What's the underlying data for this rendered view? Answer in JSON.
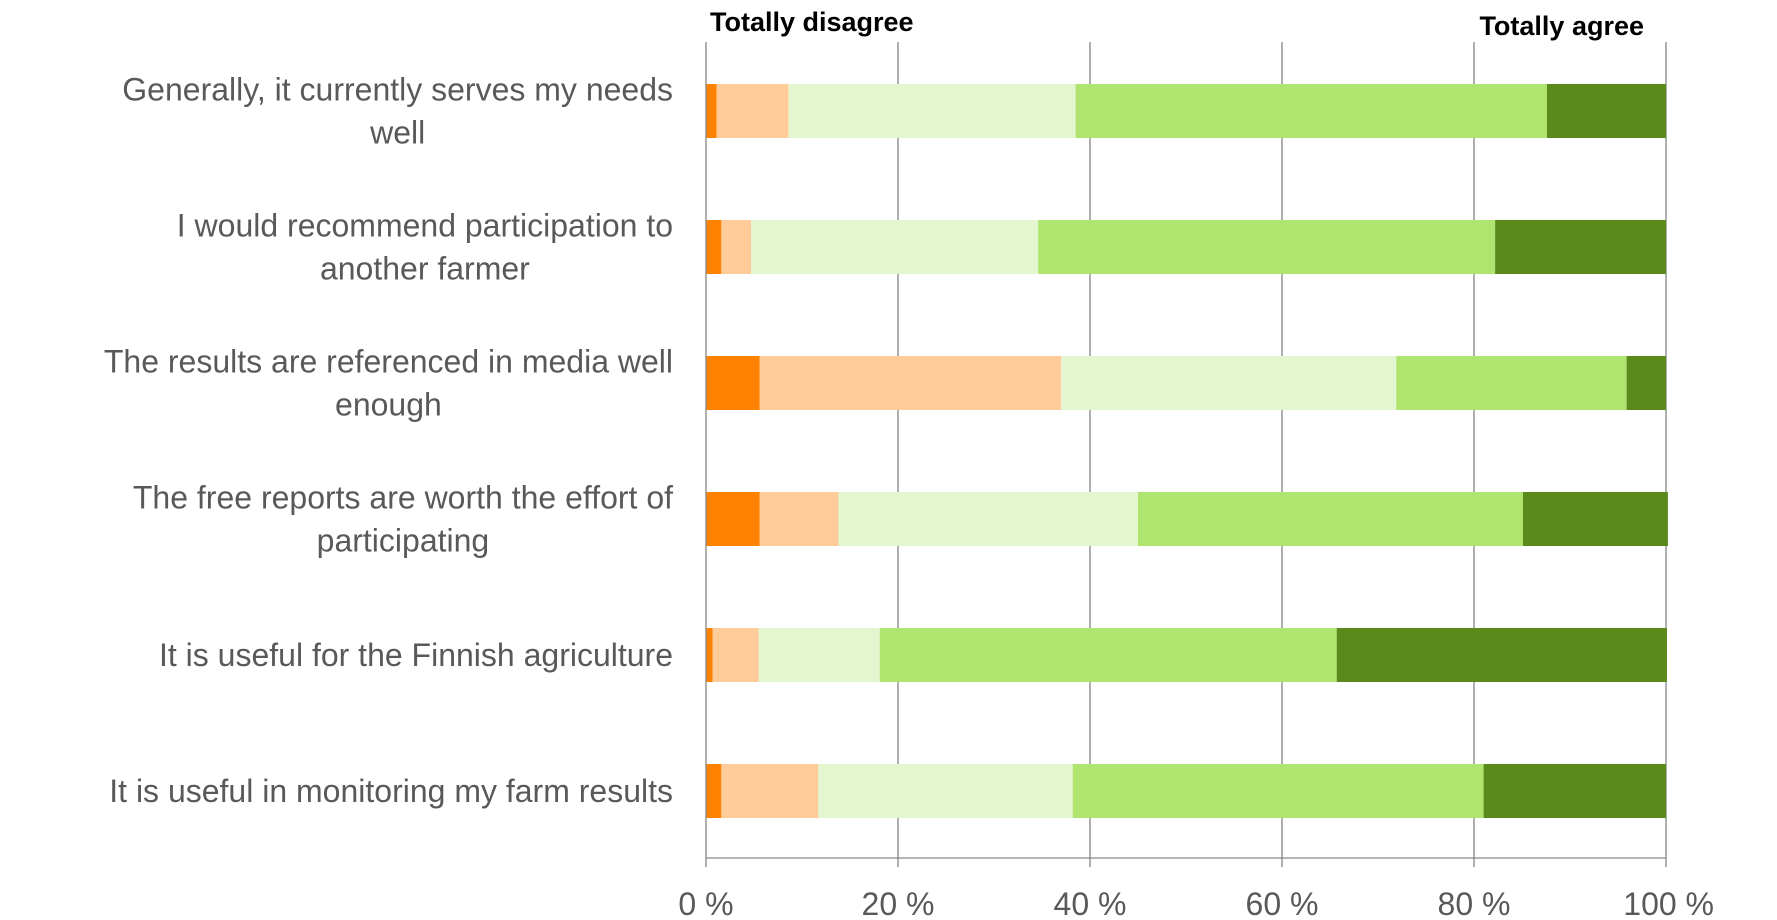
{
  "chart_data": {
    "type": "bar",
    "orientation": "horizontal",
    "stacked": "percent",
    "title": "",
    "xlabel": "",
    "ylabel": "",
    "xlim": [
      0,
      100
    ],
    "grid": true,
    "legend": "none",
    "scale_anchor_left": "Totally disagree",
    "scale_anchor_right": "Totally agree",
    "x_ticks": [
      "0 %",
      "20 %",
      "40 %",
      "60 %",
      "80 %",
      "100 %"
    ],
    "x_tick_values": [
      0,
      20,
      40,
      60,
      80,
      100
    ],
    "categories": [
      [
        "Generally, it currently serves my needs",
        "well"
      ],
      [
        "I would recommend participation to",
        "another farmer"
      ],
      [
        "The results are referenced in media well",
        "enough"
      ],
      [
        "The free reports are worth the effort of",
        "participating"
      ],
      [
        "It is useful for the Finnish agriculture"
      ],
      [
        "It is useful in monitoring my farm results"
      ]
    ],
    "series": [
      {
        "color": "#FF8200",
        "values": [
          1.1,
          1.6,
          5.6,
          5.6,
          0.7,
          1.6
        ]
      },
      {
        "color": "#FFCC99",
        "values": [
          7.5,
          3.1,
          31.4,
          8.2,
          4.8,
          10.1
        ]
      },
      {
        "color": "#E3F6D0",
        "values": [
          29.9,
          29.9,
          34.9,
          31.2,
          12.6,
          26.5
        ]
      },
      {
        "color": "#AFE56E",
        "values": [
          49.1,
          47.6,
          24.0,
          40.1,
          47.6,
          42.8
        ]
      },
      {
        "color": "#5A8A1C",
        "values": [
          12.4,
          17.8,
          4.1,
          15.1,
          34.4,
          19.0
        ]
      }
    ]
  }
}
